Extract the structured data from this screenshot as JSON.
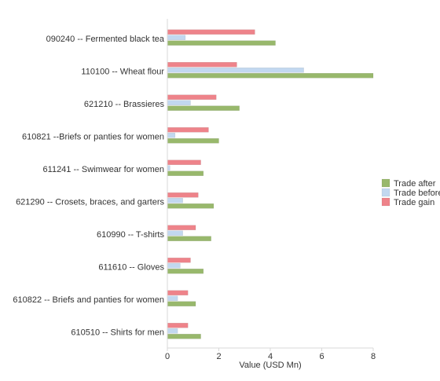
{
  "chart_data": {
    "type": "bar",
    "orientation": "horizontal",
    "categories": [
      "090240 -- Fermented black tea",
      "110100 -- Wheat flour",
      "621210 -- Brassieres",
      "610821 --Briefs or panties for women",
      "611241 -- Swimwear for women",
      "621290 -- Crosets, braces, and garters",
      "610990 -- T-shirts",
      "611610 -- Gloves",
      "610822 -- Briefs and panties for women",
      "610510 -- Shirts for men"
    ],
    "series": [
      {
        "name": "Trade after",
        "color": "#98b86c",
        "values": [
          4.2,
          8.0,
          2.8,
          2.0,
          1.4,
          1.8,
          1.7,
          1.4,
          1.1,
          1.3
        ]
      },
      {
        "name": "Trade before",
        "color": "#c2d8f0",
        "values": [
          0.7,
          5.3,
          0.9,
          0.3,
          0.1,
          0.6,
          0.6,
          0.5,
          0.4,
          0.4
        ]
      },
      {
        "name": "Trade gain",
        "color": "#ee838a",
        "values": [
          3.4,
          2.7,
          1.9,
          1.6,
          1.3,
          1.2,
          1.1,
          0.9,
          0.8,
          0.8
        ]
      }
    ],
    "xlabel": "Value (USD Mn)",
    "ylabel": "",
    "xlim": [
      0,
      8
    ],
    "xticks": [
      "0",
      "2",
      "4",
      "6",
      "8"
    ],
    "grid": false,
    "legend_position": "right"
  }
}
